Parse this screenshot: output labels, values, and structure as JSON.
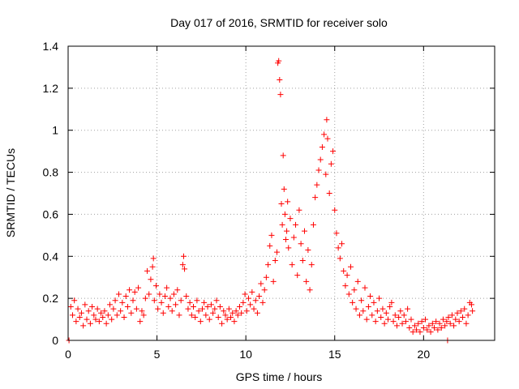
{
  "chart_data": {
    "type": "scatter",
    "title": "Day 017 of 2016, SRMTID for receiver solo",
    "xlabel": "GPS time / hours",
    "ylabel": "SRMTID / TECUs",
    "xlim": [
      0,
      24
    ],
    "ylim": [
      0,
      1.4
    ],
    "xticks": [
      0,
      5,
      10,
      15,
      20
    ],
    "yticks": [
      0,
      0.2,
      0.4,
      0.6,
      0.8,
      1,
      1.2,
      1.4
    ],
    "xtick_labels": [
      "0",
      "5",
      "10",
      "15",
      "20"
    ],
    "ytick_labels": [
      "0",
      "0.2",
      "0.4",
      "0.6",
      "0.8",
      "1",
      "1.2",
      "1.4"
    ],
    "grid": true,
    "marker": "+",
    "color": "#ff0000",
    "series": [
      {
        "name": "SRMTID",
        "points": [
          [
            0.05,
            0.0
          ],
          [
            0.15,
            0.16
          ],
          [
            0.25,
            0.12
          ],
          [
            0.35,
            0.19
          ],
          [
            0.45,
            0.09
          ],
          [
            0.55,
            0.15
          ],
          [
            0.65,
            0.11
          ],
          [
            0.75,
            0.13
          ],
          [
            0.85,
            0.07
          ],
          [
            0.95,
            0.17
          ],
          [
            1.05,
            0.1
          ],
          [
            1.15,
            0.14
          ],
          [
            1.25,
            0.08
          ],
          [
            1.35,
            0.16
          ],
          [
            1.45,
            0.12
          ],
          [
            1.55,
            0.1
          ],
          [
            1.65,
            0.15
          ],
          [
            1.75,
            0.09
          ],
          [
            1.85,
            0.13
          ],
          [
            1.95,
            0.11
          ],
          [
            2.05,
            0.14
          ],
          [
            2.15,
            0.08
          ],
          [
            2.25,
            0.12
          ],
          [
            2.35,
            0.17
          ],
          [
            2.45,
            0.1
          ],
          [
            2.55,
            0.15
          ],
          [
            2.65,
            0.19
          ],
          [
            2.75,
            0.12
          ],
          [
            2.85,
            0.22
          ],
          [
            2.95,
            0.14
          ],
          [
            3.05,
            0.18
          ],
          [
            3.15,
            0.11
          ],
          [
            3.25,
            0.21
          ],
          [
            3.35,
            0.16
          ],
          [
            3.45,
            0.24
          ],
          [
            3.55,
            0.13
          ],
          [
            3.65,
            0.19
          ],
          [
            3.75,
            0.23
          ],
          [
            3.85,
            0.15
          ],
          [
            3.95,
            0.25
          ],
          [
            4.05,
            0.09
          ],
          [
            4.15,
            0.14
          ],
          [
            4.25,
            0.12
          ],
          [
            4.35,
            0.2
          ],
          [
            4.45,
            0.33
          ],
          [
            4.55,
            0.22
          ],
          [
            4.65,
            0.29
          ],
          [
            4.75,
            0.35
          ],
          [
            4.8,
            0.39
          ],
          [
            4.85,
            0.19
          ],
          [
            4.95,
            0.26
          ],
          [
            5.05,
            0.15
          ],
          [
            5.15,
            0.22
          ],
          [
            5.25,
            0.18
          ],
          [
            5.35,
            0.13
          ],
          [
            5.45,
            0.21
          ],
          [
            5.55,
            0.25
          ],
          [
            5.65,
            0.16
          ],
          [
            5.75,
            0.2
          ],
          [
            5.85,
            0.14
          ],
          [
            5.95,
            0.22
          ],
          [
            6.05,
            0.17
          ],
          [
            6.15,
            0.24
          ],
          [
            6.25,
            0.12
          ],
          [
            6.35,
            0.19
          ],
          [
            6.45,
            0.36
          ],
          [
            6.5,
            0.4
          ],
          [
            6.55,
            0.34
          ],
          [
            6.65,
            0.21
          ],
          [
            6.75,
            0.15
          ],
          [
            6.85,
            0.18
          ],
          [
            6.95,
            0.12
          ],
          [
            7.05,
            0.16
          ],
          [
            7.15,
            0.11
          ],
          [
            7.25,
            0.19
          ],
          [
            7.35,
            0.14
          ],
          [
            7.45,
            0.09
          ],
          [
            7.55,
            0.15
          ],
          [
            7.65,
            0.18
          ],
          [
            7.75,
            0.12
          ],
          [
            7.85,
            0.16
          ],
          [
            7.95,
            0.1
          ],
          [
            8.05,
            0.17
          ],
          [
            8.15,
            0.13
          ],
          [
            8.25,
            0.15
          ],
          [
            8.35,
            0.19
          ],
          [
            8.45,
            0.11
          ],
          [
            8.55,
            0.16
          ],
          [
            8.65,
            0.08
          ],
          [
            8.75,
            0.14
          ],
          [
            8.85,
            0.12
          ],
          [
            8.95,
            0.1
          ],
          [
            9.05,
            0.15
          ],
          [
            9.15,
            0.11
          ],
          [
            9.25,
            0.13
          ],
          [
            9.35,
            0.09
          ],
          [
            9.45,
            0.14
          ],
          [
            9.55,
            0.12
          ],
          [
            9.65,
            0.16
          ],
          [
            9.75,
            0.13
          ],
          [
            9.85,
            0.18
          ],
          [
            9.95,
            0.22
          ],
          [
            10.05,
            0.14
          ],
          [
            10.15,
            0.2
          ],
          [
            10.25,
            0.17
          ],
          [
            10.35,
            0.23
          ],
          [
            10.45,
            0.15
          ],
          [
            10.55,
            0.19
          ],
          [
            10.65,
            0.13
          ],
          [
            10.75,
            0.21
          ],
          [
            10.85,
            0.27
          ],
          [
            10.95,
            0.18
          ],
          [
            11.05,
            0.24
          ],
          [
            11.15,
            0.3
          ],
          [
            11.25,
            0.36
          ],
          [
            11.35,
            0.45
          ],
          [
            11.45,
            0.5
          ],
          [
            11.55,
            0.28
          ],
          [
            11.65,
            0.38
          ],
          [
            11.75,
            0.42
          ],
          [
            11.8,
            1.32
          ],
          [
            11.85,
            1.33
          ],
          [
            11.9,
            1.24
          ],
          [
            11.95,
            1.17
          ],
          [
            12.0,
            0.65
          ],
          [
            12.05,
            0.55
          ],
          [
            12.1,
            0.88
          ],
          [
            12.15,
            0.72
          ],
          [
            12.2,
            0.6
          ],
          [
            12.25,
            0.48
          ],
          [
            12.3,
            0.52
          ],
          [
            12.35,
            0.66
          ],
          [
            12.4,
            0.44
          ],
          [
            12.5,
            0.58
          ],
          [
            12.6,
            0.36
          ],
          [
            12.7,
            0.49
          ],
          [
            12.8,
            0.55
          ],
          [
            12.9,
            0.31
          ],
          [
            13.0,
            0.62
          ],
          [
            13.1,
            0.46
          ],
          [
            13.2,
            0.38
          ],
          [
            13.3,
            0.52
          ],
          [
            13.4,
            0.28
          ],
          [
            13.5,
            0.43
          ],
          [
            13.6,
            0.24
          ],
          [
            13.7,
            0.36
          ],
          [
            13.8,
            0.55
          ],
          [
            13.9,
            0.68
          ],
          [
            14.0,
            0.74
          ],
          [
            14.1,
            0.81
          ],
          [
            14.2,
            0.86
          ],
          [
            14.3,
            0.92
          ],
          [
            14.4,
            0.98
          ],
          [
            14.5,
            0.79
          ],
          [
            14.55,
            1.05
          ],
          [
            14.6,
            0.96
          ],
          [
            14.7,
            0.7
          ],
          [
            14.8,
            0.84
          ],
          [
            14.9,
            0.9
          ],
          [
            15.0,
            0.62
          ],
          [
            15.1,
            0.51
          ],
          [
            15.2,
            0.44
          ],
          [
            15.3,
            0.39
          ],
          [
            15.4,
            0.46
          ],
          [
            15.5,
            0.33
          ],
          [
            15.6,
            0.26
          ],
          [
            15.7,
            0.31
          ],
          [
            15.8,
            0.22
          ],
          [
            15.9,
            0.35
          ],
          [
            16.0,
            0.18
          ],
          [
            16.1,
            0.24
          ],
          [
            16.2,
            0.15
          ],
          [
            16.3,
            0.28
          ],
          [
            16.4,
            0.12
          ],
          [
            16.5,
            0.19
          ],
          [
            16.6,
            0.14
          ],
          [
            16.7,
            0.25
          ],
          [
            16.8,
            0.1
          ],
          [
            16.9,
            0.16
          ],
          [
            17.0,
            0.21
          ],
          [
            17.1,
            0.12
          ],
          [
            17.2,
            0.18
          ],
          [
            17.3,
            0.09
          ],
          [
            17.4,
            0.14
          ],
          [
            17.5,
            0.2
          ],
          [
            17.6,
            0.11
          ],
          [
            17.7,
            0.15
          ],
          [
            17.8,
            0.08
          ],
          [
            17.9,
            0.13
          ],
          [
            18.0,
            0.1
          ],
          [
            18.1,
            0.16
          ],
          [
            18.2,
            0.18
          ],
          [
            18.3,
            0.09
          ],
          [
            18.4,
            0.12
          ],
          [
            18.5,
            0.07
          ],
          [
            18.6,
            0.11
          ],
          [
            18.7,
            0.14
          ],
          [
            18.8,
            0.08
          ],
          [
            18.9,
            0.12
          ],
          [
            19.0,
            0.09
          ],
          [
            19.1,
            0.15
          ],
          [
            19.2,
            0.06
          ],
          [
            19.3,
            0.1
          ],
          [
            19.4,
            0.04
          ],
          [
            19.5,
            0.07
          ],
          [
            19.6,
            0.05
          ],
          [
            19.7,
            0.08
          ],
          [
            19.8,
            0.04
          ],
          [
            19.9,
            0.09
          ],
          [
            20.0,
            0.06
          ],
          [
            20.1,
            0.1
          ],
          [
            20.2,
            0.05
          ],
          [
            20.3,
            0.07
          ],
          [
            20.4,
            0.04
          ],
          [
            20.5,
            0.08
          ],
          [
            20.6,
            0.06
          ],
          [
            20.7,
            0.09
          ],
          [
            20.8,
            0.05
          ],
          [
            20.9,
            0.08
          ],
          [
            21.0,
            0.06
          ],
          [
            21.1,
            0.1
          ],
          [
            21.2,
            0.07
          ],
          [
            21.3,
            0.09
          ],
          [
            21.35,
            0.0
          ],
          [
            21.4,
            0.11
          ],
          [
            21.5,
            0.08
          ],
          [
            21.6,
            0.12
          ],
          [
            21.7,
            0.07
          ],
          [
            21.8,
            0.1
          ],
          [
            21.9,
            0.13
          ],
          [
            22.0,
            0.09
          ],
          [
            22.1,
            0.14
          ],
          [
            22.2,
            0.11
          ],
          [
            22.3,
            0.15
          ],
          [
            22.4,
            0.08
          ],
          [
            22.5,
            0.12
          ],
          [
            22.6,
            0.18
          ],
          [
            22.7,
            0.17
          ],
          [
            22.75,
            0.14
          ]
        ]
      }
    ]
  }
}
